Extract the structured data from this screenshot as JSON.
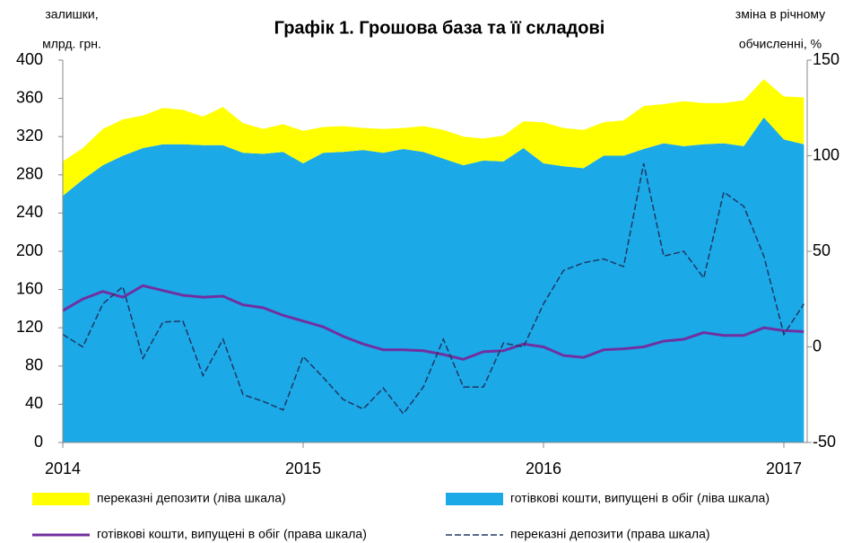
{
  "chart_data": {
    "type": "area-line",
    "title": "Графік 1. Грошова база та її складові",
    "ylabel": [
      "залишки,",
      "млрд. грн."
    ],
    "y2label": [
      "зміна в річному",
      "обчисленні, %"
    ],
    "categories": [
      "2014",
      null,
      null,
      null,
      null,
      null,
      null,
      null,
      null,
      null,
      null,
      null,
      "2015",
      null,
      null,
      null,
      null,
      null,
      null,
      null,
      null,
      null,
      null,
      null,
      "2016",
      null,
      null,
      null,
      null,
      null,
      null,
      null,
      null,
      null,
      null,
      null,
      "2017",
      null
    ],
    "ylim": [
      0,
      400
    ],
    "yticks": [
      0,
      40,
      80,
      120,
      160,
      200,
      240,
      280,
      320,
      360,
      400
    ],
    "y2lim": [
      -50,
      150
    ],
    "y2ticks": [
      -50,
      0,
      50,
      100,
      150
    ],
    "stacked": true,
    "series": [
      {
        "name": "готівкові кошти, випущені в обіг (ліва шкала)",
        "kind": "area",
        "axis": "y",
        "color": "#1ba9e8",
        "values": [
          258,
          275,
          290,
          300,
          308,
          312,
          312,
          311,
          311,
          303,
          302,
          304,
          292,
          303,
          304,
          306,
          303,
          307,
          304,
          297,
          290,
          295,
          294,
          308,
          292,
          289,
          287,
          300,
          300,
          307,
          313,
          310,
          312,
          313,
          310,
          340,
          317,
          312
        ]
      },
      {
        "name": "переказні депозити (ліва шкала)",
        "kind": "area",
        "axis": "y",
        "color": "#ffff00",
        "values": [
          36,
          33,
          38,
          38,
          34,
          38,
          36,
          30,
          40,
          31,
          26,
          29,
          34,
          27,
          27,
          23,
          25,
          22,
          27,
          30,
          30,
          23,
          27,
          28,
          43,
          40,
          40,
          35,
          37,
          45,
          41,
          47,
          43,
          42,
          48,
          40,
          45,
          49
        ]
      },
      {
        "name": "готівкові кошти, випущені в обіг (права шкала)",
        "kind": "line",
        "axis": "y2",
        "color": "#7030a0",
        "dashed": false,
        "values": [
          19,
          25,
          29,
          26,
          32,
          29.5,
          27,
          26,
          26.5,
          22,
          20.5,
          16.5,
          13.5,
          10.5,
          5.5,
          1.5,
          -1.5,
          -1.5,
          -2,
          -4,
          -6.5,
          -2.5,
          -2,
          1.5,
          0,
          -4.5,
          -5.5,
          -1.5,
          -1,
          0,
          3,
          4,
          7.5,
          6,
          6,
          10,
          8.5,
          8
        ]
      },
      {
        "name": "переказні депозити (права шкала)",
        "kind": "line",
        "axis": "y2",
        "color": "#1f3864",
        "dashed": true,
        "values": [
          6.5,
          0,
          22.5,
          31.5,
          -6,
          13,
          13.5,
          -15,
          4,
          -25,
          -28.5,
          -33,
          -5,
          -16,
          -27.5,
          -32.5,
          -21.5,
          -35,
          -21,
          4,
          -21,
          -21,
          2,
          0,
          22.5,
          40,
          44,
          46,
          42,
          96,
          47.5,
          50,
          36,
          81,
          73.5,
          47.5,
          6.5,
          22.5
        ]
      }
    ]
  }
}
